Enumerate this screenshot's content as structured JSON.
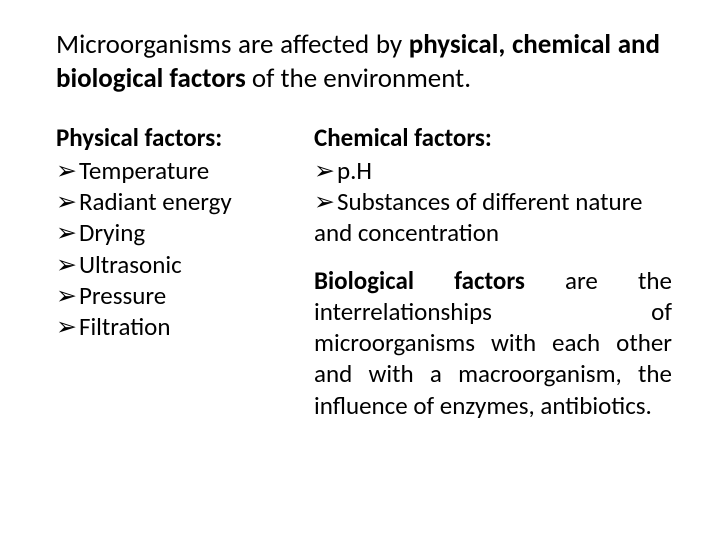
{
  "intro": {
    "prefix": "Microorganisms are affected by ",
    "bold": "physical, chemical and biological factors",
    "suffix": " of the environment."
  },
  "physical": {
    "heading": "Physical factors:",
    "bullets": [
      "Temperature",
      "Radiant energy",
      "Drying",
      "Ultrasonic",
      "Pressure",
      "Filtration"
    ]
  },
  "chemical": {
    "heading": "Chemical factors:",
    "bullets": [
      "p.H",
      "Substances of different nature and concentration"
    ]
  },
  "biological": {
    "bold": "Biological factors",
    "rest": " are the interrelationships of microorganisms with each other and with a macroorganism, the influence of enzymes, antibiotics."
  },
  "bullet_glyph": "➢",
  "colors": {
    "text": "#000000",
    "background": "#ffffff"
  },
  "typography": {
    "intro_fontsize_pt": 20,
    "body_fontsize_pt": 19,
    "font_family": "Calibri"
  }
}
